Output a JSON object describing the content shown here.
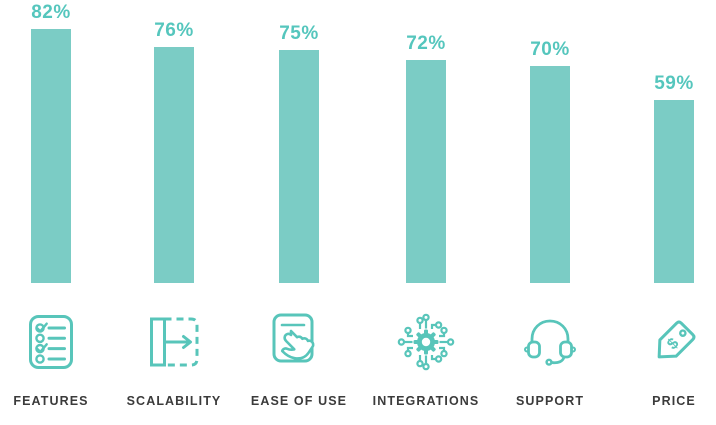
{
  "chart_data": {
    "type": "bar",
    "categories": [
      "FEATURES",
      "SCALABILITY",
      "EASE OF USE",
      "INTEGRATIONS",
      "SUPPORT",
      "PRICE"
    ],
    "values": [
      82,
      76,
      75,
      72,
      70,
      59
    ],
    "value_labels": [
      "82%",
      "76%",
      "75%",
      "72%",
      "70%",
      "59%"
    ],
    "unit": "%",
    "title": "",
    "xlabel": "",
    "ylabel": "",
    "ylim": [
      0,
      100
    ],
    "grid": false,
    "legend": "none",
    "orientation": "vertical",
    "bar_color": "#7bccc5",
    "accent_color": "#58c5ba",
    "category_text_color": "#3b3b3b",
    "icons": [
      "checklist-icon",
      "scalability-expand-icon",
      "tap-hand-icon",
      "circuit-gear-icon",
      "headset-icon",
      "price-tag-icon"
    ]
  }
}
